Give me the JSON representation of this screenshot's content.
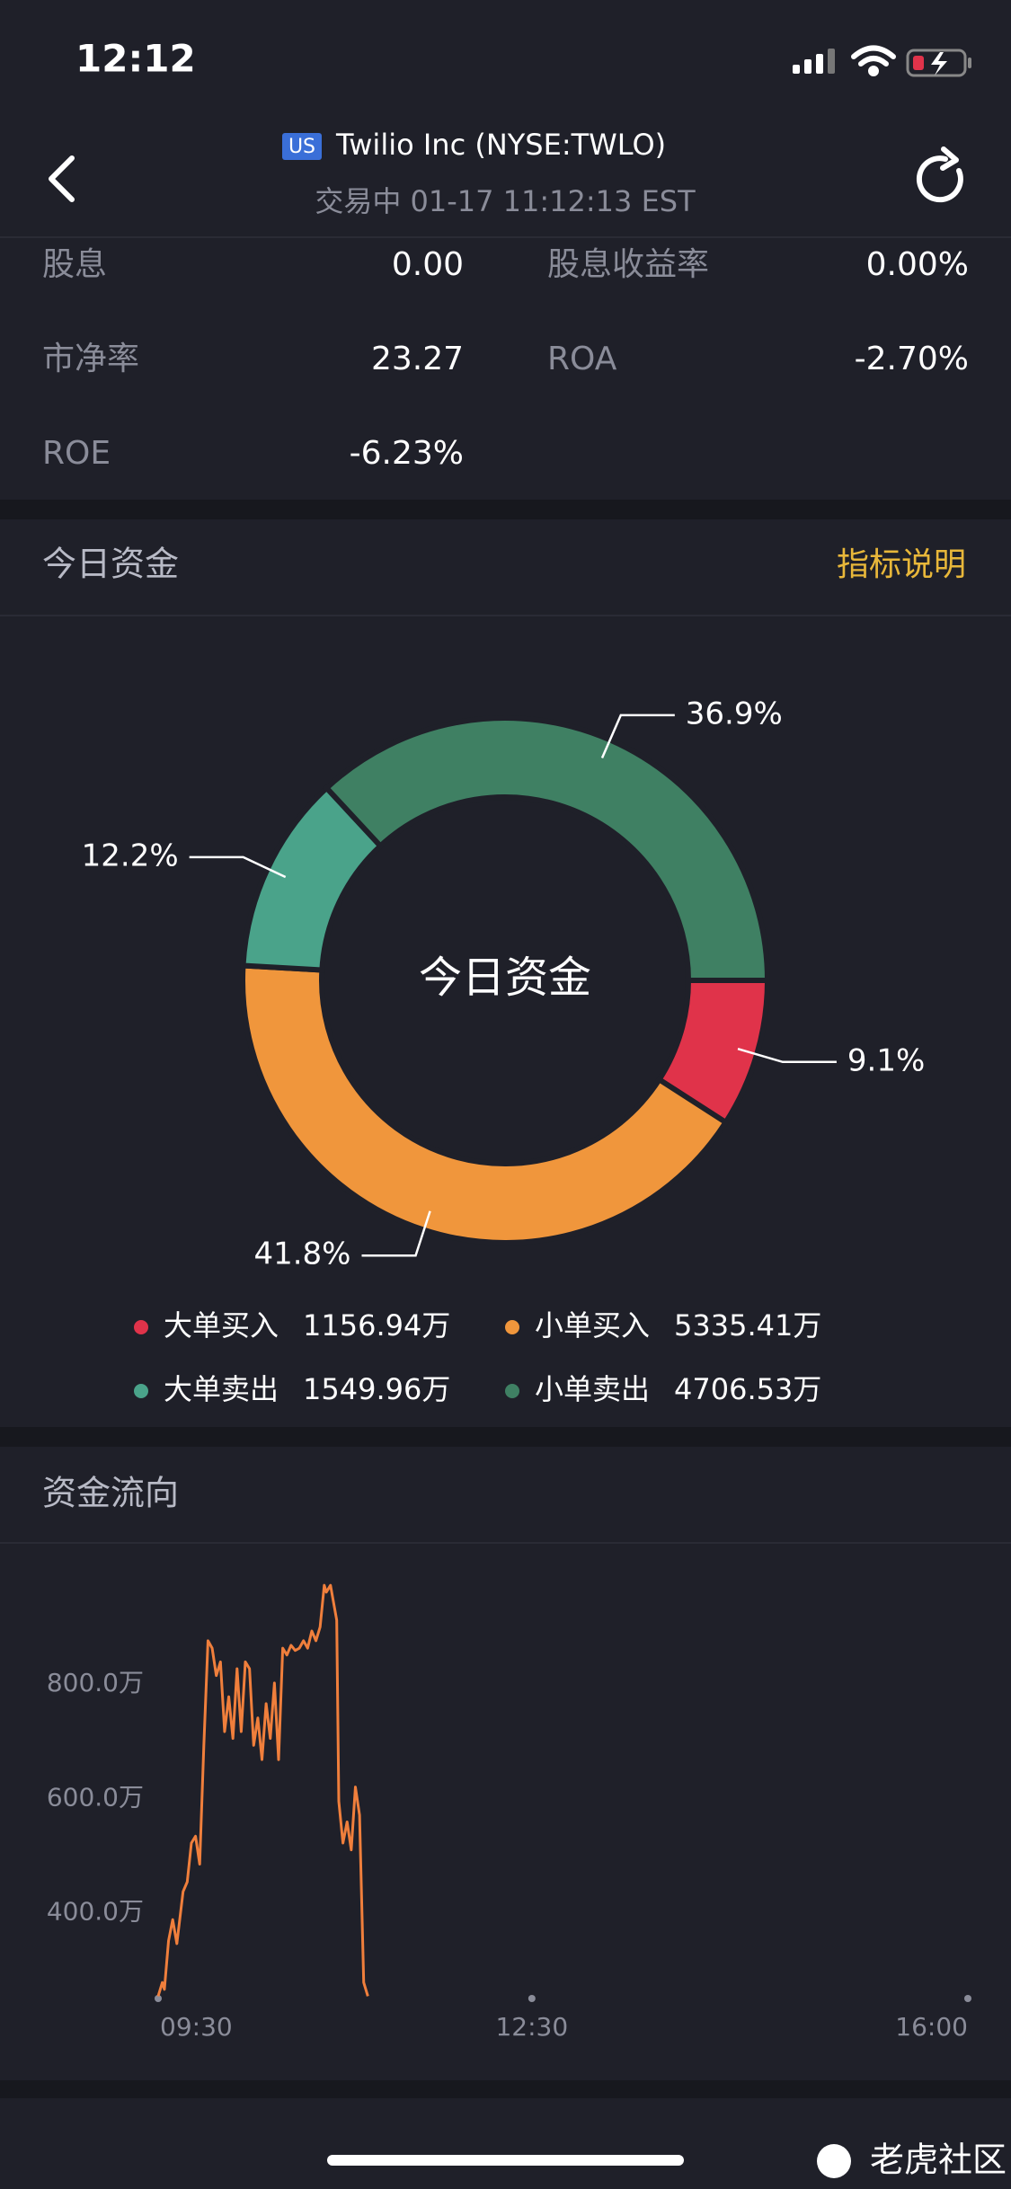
{
  "status_bar": {
    "time": "12:12"
  },
  "header": {
    "badge": "US",
    "title": "Twilio Inc (NYSE:TWLO)",
    "subtitle": "交易中 01-17 11:12:13 EST"
  },
  "metrics": [
    {
      "label": "股息",
      "value": "0.00"
    },
    {
      "label": "股息收益率",
      "value": "0.00%"
    },
    {
      "label": "市净率",
      "value": "23.27"
    },
    {
      "label": "ROA",
      "value": "-2.70%"
    },
    {
      "label": "ROE",
      "value": "-6.23%"
    }
  ],
  "sections": {
    "capital_title": "今日资金",
    "capital_link": "指标说明",
    "flow_title": "资金流向"
  },
  "chart_data": [
    {
      "type": "pie",
      "center_label": "今日资金",
      "categories": [
        "大单买入",
        "小单买入",
        "大单卖出",
        "小单卖出"
      ],
      "values": [
        9.1,
        41.8,
        12.2,
        36.9
      ],
      "value_labels": [
        "9.1%",
        "41.8%",
        "12.2%",
        "36.9%"
      ],
      "amounts": [
        "1156.94万",
        "5335.41万",
        "1549.96万",
        "4706.53万"
      ],
      "colors": [
        "#e0334a",
        "#f0963c",
        "#4aa38a",
        "#3f8063"
      ]
    },
    {
      "type": "line",
      "x": [
        "09:30",
        "09:32",
        "09:33",
        "09:35",
        "09:37",
        "09:39",
        "09:42",
        "09:44",
        "09:46",
        "09:48",
        "09:50",
        "09:52",
        "09:54",
        "09:56",
        "09:58",
        "10:00",
        "10:02",
        "10:04",
        "10:06",
        "10:08",
        "10:10",
        "10:12",
        "10:14",
        "10:16",
        "10:18",
        "10:20",
        "10:22",
        "10:24",
        "10:26",
        "10:28",
        "10:30",
        "10:32",
        "10:34",
        "10:36",
        "10:38",
        "10:40",
        "10:42",
        "10:44",
        "10:46",
        "10:48",
        "10:50",
        "10:51",
        "10:53",
        "10:56",
        "10:57",
        "10:59",
        "11:01",
        "11:03",
        "11:05",
        "11:07",
        "11:09",
        "11:11"
      ],
      "series": [
        {
          "color": "#f07f3c",
          "values": [
            254,
            278,
            266,
            351,
            388,
            346,
            437,
            454,
            522,
            534,
            485,
            693,
            876,
            863,
            815,
            839,
            717,
            778,
            705,
            827,
            717,
            839,
            827,
            693,
            741,
            668,
            766,
            705,
            802,
            668,
            863,
            851,
            868,
            859,
            863,
            876,
            863,
            893,
            876,
            900,
            973,
            961,
            973,
            912,
            595,
            522,
            559,
            510,
            620,
            571,
            278,
            254
          ]
        }
      ],
      "xlim": [
        "09:30",
        "16:00"
      ],
      "xticks": [
        "09:30",
        "12:30",
        "16:00"
      ],
      "ylim": [
        250,
        1000
      ],
      "yticks": [
        {
          "value": 400,
          "label": "400.0万"
        },
        {
          "value": 600,
          "label": "600.0万"
        },
        {
          "value": 800,
          "label": "800.0万"
        }
      ]
    }
  ],
  "watermark": "老虎社区"
}
